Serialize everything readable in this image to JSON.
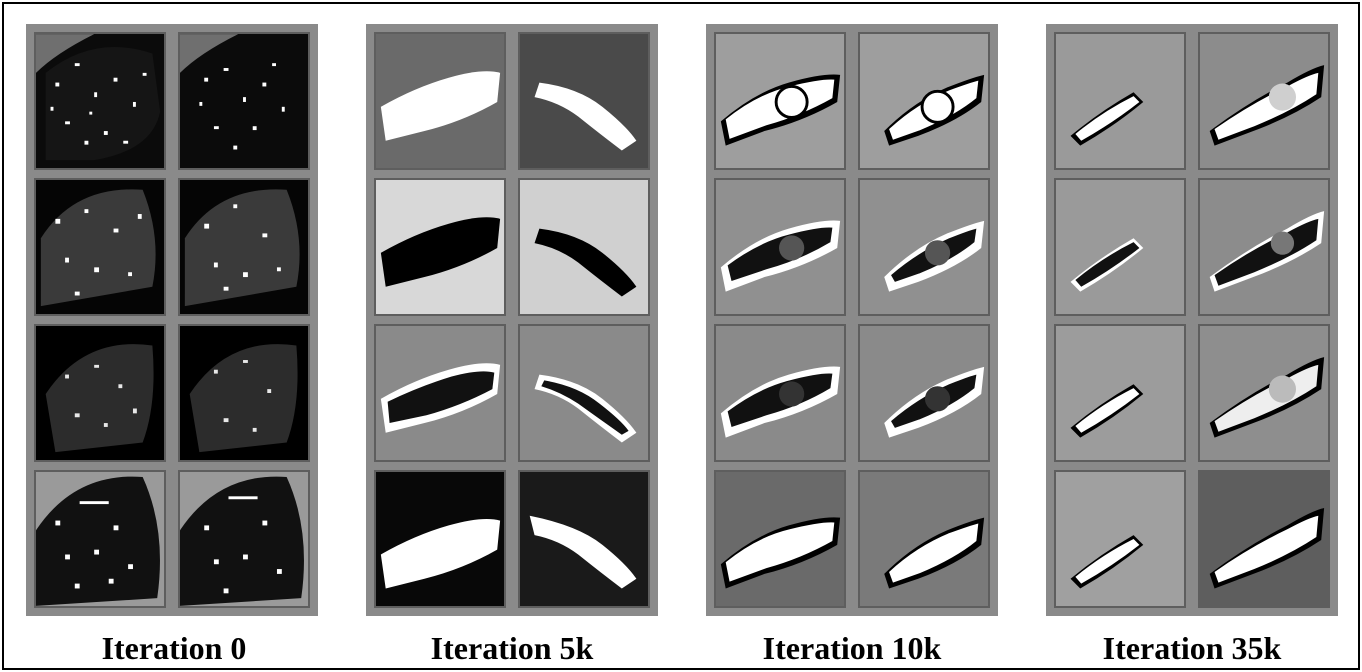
{
  "figure": {
    "panels": [
      {
        "caption": "Iteration 0"
      },
      {
        "caption": "Iteration 5k"
      },
      {
        "caption": "Iteration 10k"
      },
      {
        "caption": "Iteration 35k"
      }
    ]
  }
}
